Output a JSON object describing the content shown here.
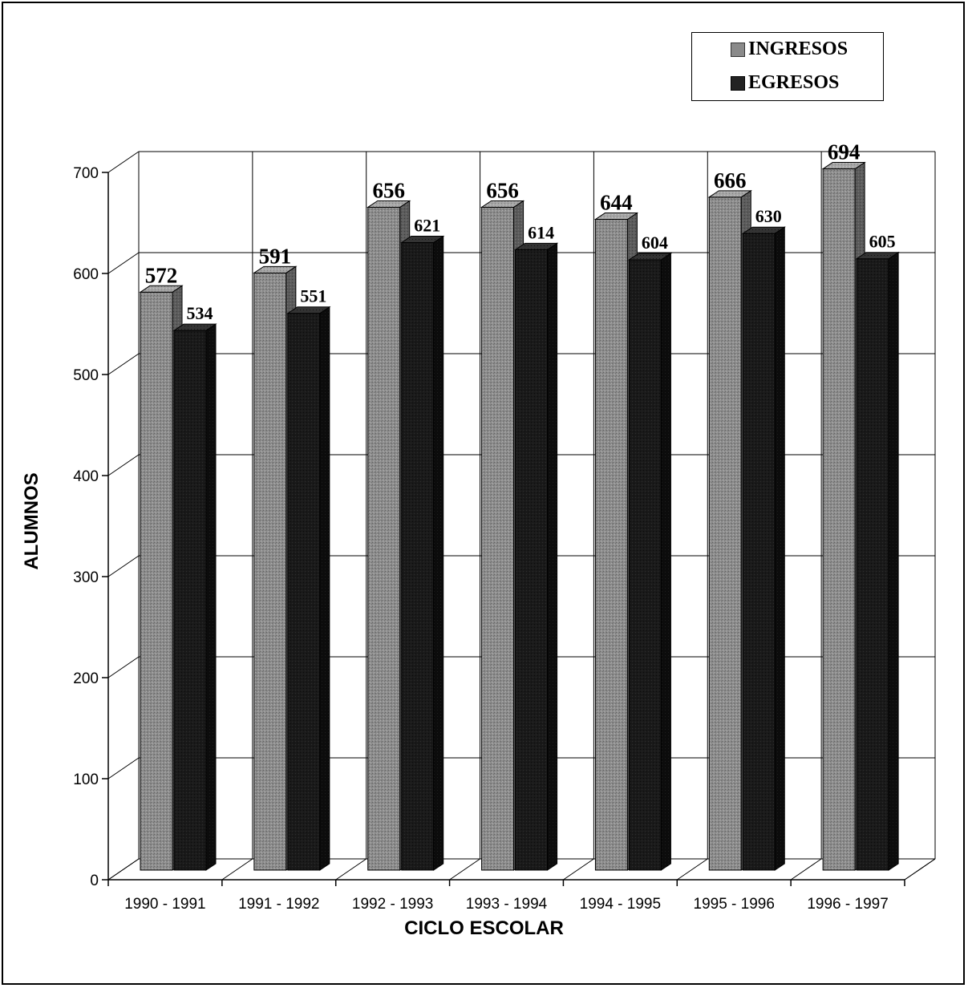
{
  "chart_data": {
    "type": "bar",
    "categories": [
      "1990 - 1991",
      "1991 - 1992",
      "1992 - 1993",
      "1993 - 1994",
      "1994 - 1995",
      "1995 - 1996",
      "1996 - 1997"
    ],
    "series": [
      {
        "name": "INGRESOS",
        "values": [
          572,
          591,
          656,
          656,
          644,
          666,
          694
        ],
        "color": "#8a8a8a"
      },
      {
        "name": "EGRESOS",
        "values": [
          534,
          551,
          621,
          614,
          604,
          630,
          605
        ],
        "color": "#1a1a1a"
      }
    ],
    "xlabel": "CICLO ESCOLAR",
    "ylabel": "ALUMNOS",
    "ylim": [
      0,
      700
    ],
    "yticks": [
      0,
      100,
      200,
      300,
      400,
      500,
      600,
      700
    ],
    "grid": true,
    "legend_position": "top-right",
    "style": "3d"
  }
}
